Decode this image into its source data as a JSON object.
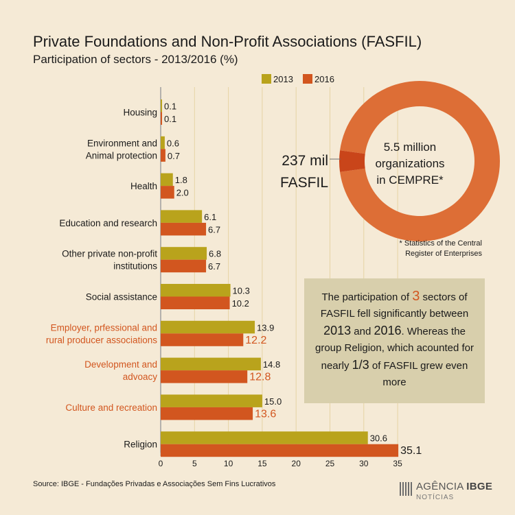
{
  "header": {
    "title": "Private Foundations and Non-Profit Associations (FASFIL)",
    "subtitle": "Participation of sectors - 2013/2016 (%)"
  },
  "colors": {
    "series_2013": "#b9a31c",
    "series_2016": "#d2561f",
    "highlight_text": "#d2561f",
    "donut": "#dd6e36",
    "background": "#f5ead6"
  },
  "chart_data": {
    "type": "bar",
    "orientation": "horizontal",
    "categories": [
      "Housing",
      "Environment and Animal protection",
      "Health",
      "Education and research",
      "Other private non-profit institutions",
      "Social assistance",
      "Employer, prfessional and rural producer associations",
      "Development and advoacy",
      "Culture and recreation",
      "Religion"
    ],
    "category_lines": [
      [
        "Housing"
      ],
      [
        "Environment and",
        "Animal protection"
      ],
      [
        "Health"
      ],
      [
        "Education and research"
      ],
      [
        "Other private non-profit",
        "institutions"
      ],
      [
        "Social assistance"
      ],
      [
        "Employer, prfessional and",
        "rural producer associations"
      ],
      [
        "Development and",
        "advoacy"
      ],
      [
        "Culture and recreation"
      ],
      [
        "Religion"
      ]
    ],
    "highlighted": [
      false,
      false,
      false,
      false,
      false,
      false,
      true,
      true,
      true,
      false
    ],
    "series": [
      {
        "name": "2013",
        "values": [
          0.1,
          0.6,
          1.8,
          6.1,
          6.8,
          10.3,
          13.9,
          14.8,
          15.0,
          30.6
        ]
      },
      {
        "name": "2016",
        "values": [
          0.1,
          0.7,
          2.0,
          6.7,
          6.7,
          10.2,
          12.2,
          12.8,
          13.6,
          35.1
        ]
      }
    ],
    "value_labels": {
      "2013": [
        "0.1",
        "0.6",
        "1.8",
        "6.1",
        "6.8",
        "10.3",
        "13.9",
        "14.8",
        "15.0",
        "30.6"
      ],
      "2016": [
        "0.1",
        "0.7",
        "2.0",
        "6.7",
        "6.7",
        "10.2",
        "12.2",
        "12.8",
        "13.6",
        "35.1"
      ]
    },
    "xlim": [
      0,
      35
    ],
    "x_ticks": [
      "0",
      "5",
      "10",
      "15",
      "20",
      "25",
      "30",
      "35"
    ],
    "legend_position": "top",
    "grid": true
  },
  "donut": {
    "fasfil_label_1": "237 mil",
    "fasfil_label_2": "FASFIL",
    "total_line_1": "5.5 million",
    "total_line_2": "organizations",
    "total_line_3": "in CEMPRE*",
    "fasfil_share": 0.043
  },
  "footnote": {
    "line1": "* Statistics of the Central",
    "line2": "Register of Enterprises"
  },
  "note": {
    "t1": "The participation of ",
    "n": "3",
    "t2": " sectors of FASFIL fell significantly between ",
    "y1": "2013",
    "and": " and ",
    "y2": "2016",
    "t3": ". Whereas the group Religion, which acounted for nearly ",
    "frac": "1/3",
    "t4": " of FASFIL grew even more"
  },
  "source": "Source: IBGE - Fundações Privadas e Associações Sem Fins Lucrativos",
  "logo": {
    "word1": "AGÊNCIA",
    "word2": "IBGE",
    "sub": "NOTÍCIAS"
  }
}
